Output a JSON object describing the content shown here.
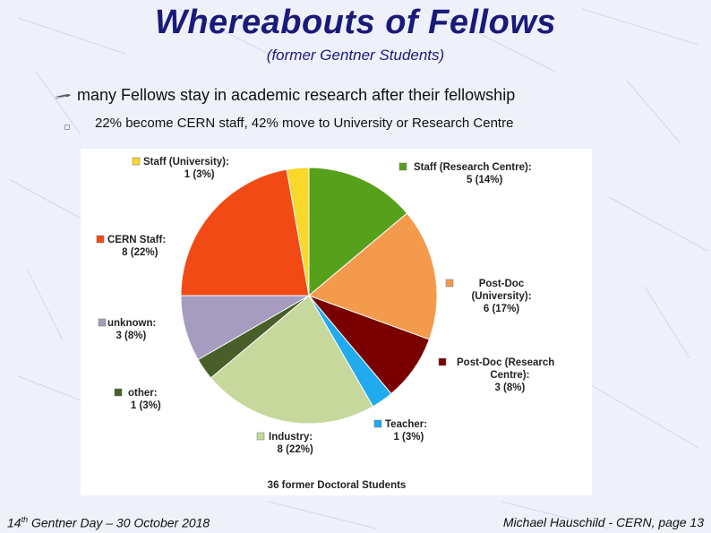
{
  "slide": {
    "title": "Whereabouts of Fellows",
    "subtitle": "(former Gentner Students)",
    "bullet_main": "many Fellows stay in academic research after their fellowship",
    "bullet_sub": "22% become CERN staff, 42% move to University or Research Centre",
    "footer_left_prefix": "14",
    "footer_left_sup": "th",
    "footer_left_suffix": " Gentner Day – 30 October 2018",
    "footer_right": "Michael Hauschild - CERN, page 13"
  },
  "chart_data": {
    "type": "pie",
    "caption": "36 former Doctoral Students",
    "slices": [
      {
        "name": "Staff (Research Centre):",
        "count": 5,
        "percent": "14%",
        "color": "#56a01c",
        "line2": "5 (14%)"
      },
      {
        "name": "Post-Doc (University):",
        "count": 6,
        "percent": "17%",
        "color": "#f39a4c",
        "line2": "6 (17%)"
      },
      {
        "name": "Post-Doc (Research Centre):",
        "count": 3,
        "percent": "8%",
        "color": "#7a0000",
        "line2": "3 (8%)"
      },
      {
        "name": "Teacher:",
        "count": 1,
        "percent": "3%",
        "color": "#22aaee",
        "line2": "1 (3%)"
      },
      {
        "name": "Industry:",
        "count": 8,
        "percent": "22%",
        "color": "#c6d89c",
        "line2": "8 (22%)"
      },
      {
        "name": "other:",
        "count": 1,
        "percent": "3%",
        "color": "#485f2a",
        "line2": "1 (3%)"
      },
      {
        "name": "unknown:",
        "count": 3,
        "percent": "8%",
        "color": "#a69cc0",
        "line2": "3 (8%)"
      },
      {
        "name": "CERN Staff:",
        "count": 8,
        "percent": "22%",
        "color": "#f24a14",
        "line2": "8 (22%)"
      },
      {
        "name": "Staff (University):",
        "count": 1,
        "percent": "3%",
        "color": "#f8d82a",
        "line2": "1 (3%)"
      }
    ],
    "labels": {
      "staff_rc": [
        "Staff (Research Centre):",
        "5 (14%)"
      ],
      "postdoc_uni": [
        "Post-Doc",
        "(University):",
        "6 (17%)"
      ],
      "postdoc_rc": [
        "Post-Doc (Research",
        "Centre):",
        "3 (8%)"
      ],
      "teacher": [
        "Teacher:",
        "1 (3%)"
      ],
      "industry": [
        "Industry:",
        "8 (22%)"
      ],
      "other": [
        "other:",
        "1 (3%)"
      ],
      "unknown": [
        "unknown:",
        "3 (8%)"
      ],
      "cern_staff": [
        "CERN Staff:",
        "8 (22%)"
      ],
      "staff_uni": [
        "Staff (University):",
        "1 (3%)"
      ]
    }
  }
}
